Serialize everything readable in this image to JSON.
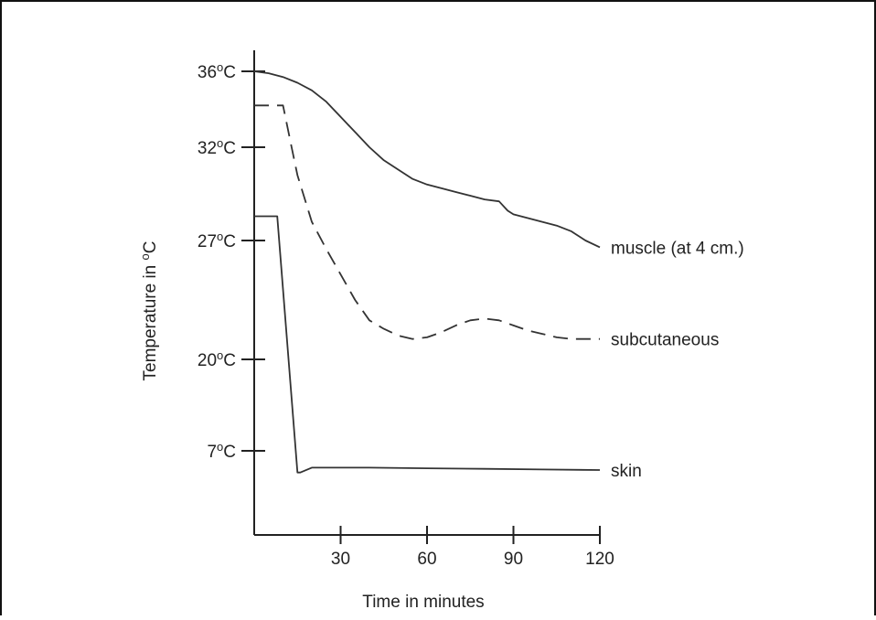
{
  "chart_data": {
    "type": "line",
    "title": "",
    "xlabel": "Time in minutes",
    "ylabel_parts": {
      "text": "Temperature in ",
      "sup": "o",
      "unit": "C"
    },
    "xlim": [
      0,
      120
    ],
    "x_ticks": [
      {
        "value": 30,
        "label": "30"
      },
      {
        "value": 60,
        "label": "60"
      },
      {
        "value": 90,
        "label": "90"
      },
      {
        "value": 120,
        "label": "120"
      }
    ],
    "y_ticks": [
      {
        "label_num": "36",
        "sup": "o",
        "unit": "C"
      },
      {
        "label_num": "32",
        "sup": "o",
        "unit": "C"
      },
      {
        "label_num": "27",
        "sup": "o",
        "unit": "C"
      },
      {
        "label_num": "20",
        "sup": "o",
        "unit": "C"
      },
      {
        "label_num": "7",
        "sup": "o",
        "unit": "C"
      }
    ],
    "grid": false,
    "series": [
      {
        "name": "muscle (at 4 cm.)",
        "style": "solid",
        "color": "#333333",
        "x": [
          0,
          5,
          10,
          15,
          20,
          25,
          30,
          35,
          40,
          45,
          50,
          55,
          60,
          65,
          70,
          75,
          80,
          85,
          88,
          90,
          95,
          100,
          105,
          110,
          115,
          120
        ],
        "y": [
          36.0,
          35.9,
          35.7,
          35.4,
          35.0,
          34.4,
          33.6,
          32.8,
          32.0,
          31.3,
          30.8,
          30.3,
          30.0,
          29.8,
          29.6,
          29.4,
          29.2,
          29.1,
          28.6,
          28.4,
          28.2,
          28.0,
          27.8,
          27.5,
          27.0,
          26.6
        ]
      },
      {
        "name": "subcutaneous",
        "style": "dashed",
        "color": "#333333",
        "x": [
          0,
          10,
          13,
          15,
          20,
          25,
          30,
          35,
          40,
          45,
          50,
          55,
          60,
          65,
          70,
          75,
          80,
          85,
          90,
          95,
          100,
          105,
          110,
          115,
          120
        ],
        "y": [
          34.2,
          34.2,
          32.0,
          30.5,
          28.0,
          26.5,
          25.0,
          23.5,
          22.3,
          21.8,
          21.4,
          21.2,
          21.3,
          21.6,
          22.0,
          22.3,
          22.4,
          22.3,
          22.0,
          21.7,
          21.5,
          21.3,
          21.2,
          21.2,
          21.2
        ]
      },
      {
        "name": "skin",
        "style": "solid",
        "color": "#333333",
        "x": [
          0,
          8,
          15,
          16,
          20,
          30,
          40,
          60,
          80,
          100,
          120
        ],
        "y": [
          28.3,
          28.3,
          5.2,
          5.2,
          5.6,
          5.6,
          5.6,
          5.55,
          5.5,
          5.45,
          5.4
        ]
      }
    ]
  }
}
